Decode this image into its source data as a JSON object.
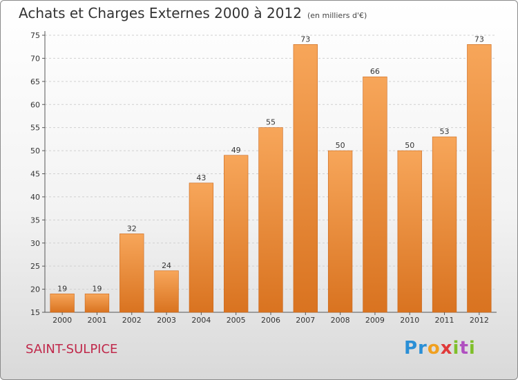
{
  "header": {
    "title": "Achats et Charges Externes 2000 à 2012",
    "unit": "(en milliers d'€)"
  },
  "footer": {
    "town": "SAINT-SULPICE",
    "logo": "Proxiti"
  },
  "colors": {
    "bar_light": "#f7a65a",
    "bar_dark": "#d97320",
    "town": "#c0284a"
  },
  "chart_data": {
    "type": "bar",
    "title": "Achats et Charges Externes 2000 à 2012",
    "subtitle": "(en milliers d'€)",
    "xlabel": "",
    "ylabel": "",
    "categories": [
      "2000",
      "2001",
      "2002",
      "2003",
      "2004",
      "2005",
      "2006",
      "2007",
      "2008",
      "2009",
      "2010",
      "2011",
      "2012"
    ],
    "values": [
      19,
      19,
      32,
      24,
      43,
      49,
      55,
      73,
      50,
      66,
      50,
      53,
      73
    ],
    "ylim": [
      15,
      75
    ],
    "yticks": [
      15,
      20,
      25,
      30,
      35,
      40,
      45,
      50,
      55,
      60,
      65,
      70,
      75
    ],
    "grid": true,
    "legend": "none"
  }
}
